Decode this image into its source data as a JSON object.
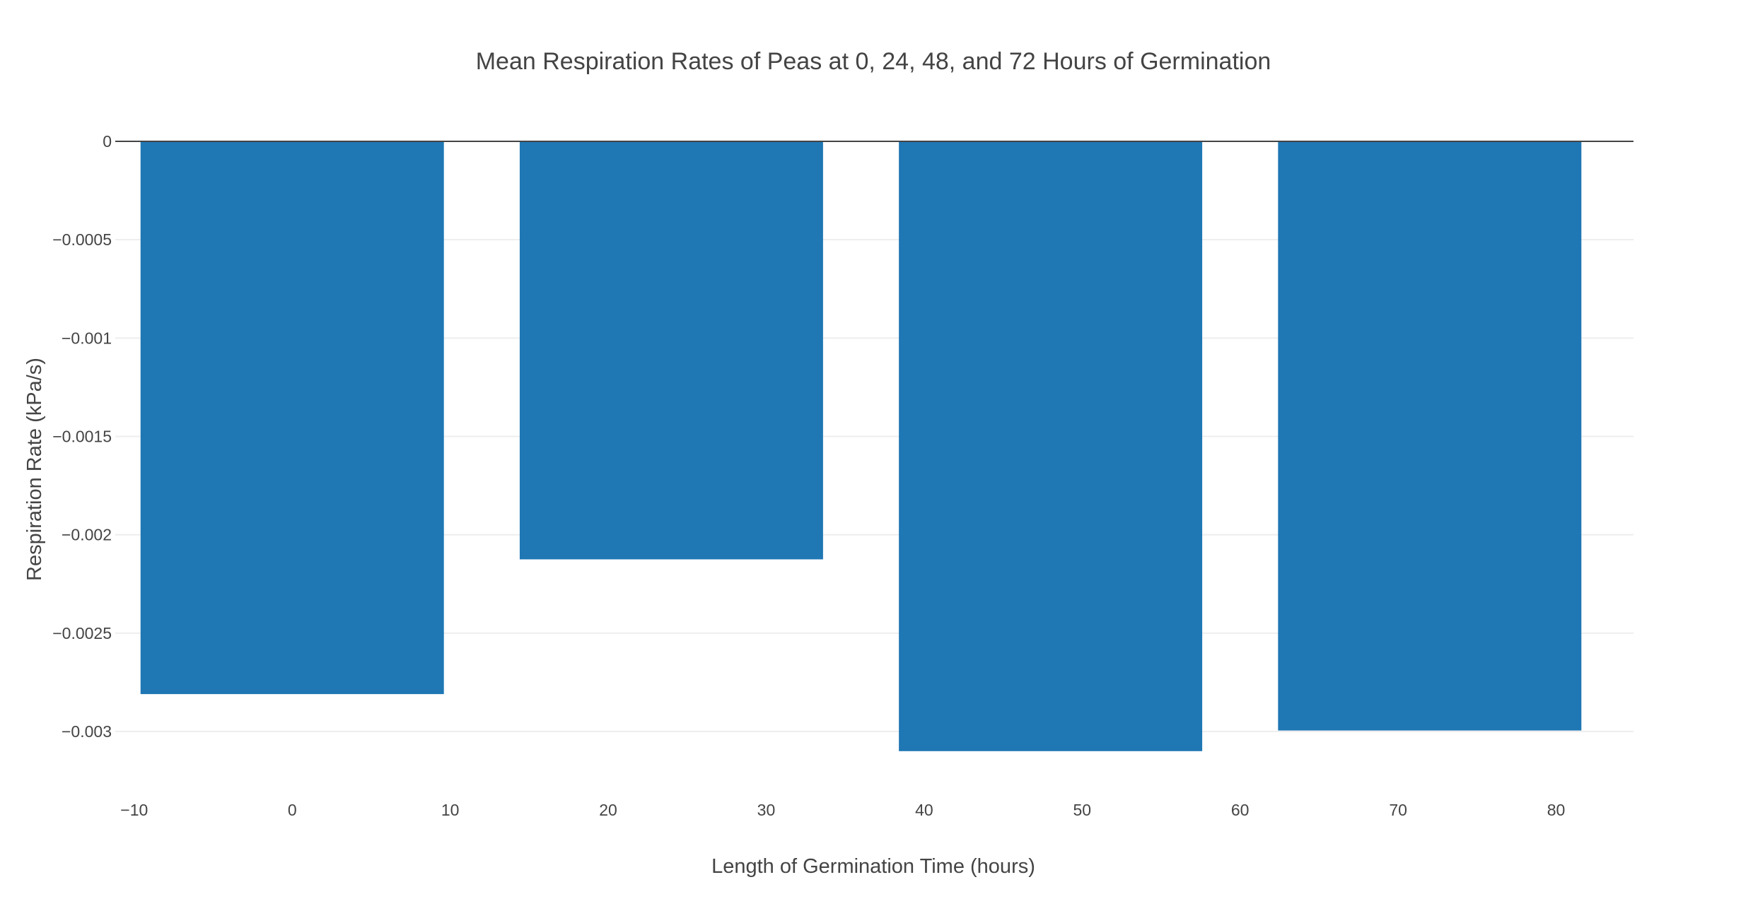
{
  "chart_data": {
    "type": "bar",
    "title": "Mean Respiration Rates of Peas at 0, 24, 48, and 72 Hours of Germination",
    "xlabel": "Length of Germination Time (hours)",
    "ylabel": "Respiration Rate (kPa/s)",
    "x": [
      0,
      24,
      48,
      72
    ],
    "values": [
      -0.00281,
      -0.002125,
      -0.0031,
      -0.002995
    ],
    "bar_width": 19.2,
    "xlim": [
      -11.2,
      84.9
    ],
    "ylim": [
      -0.00323,
      0
    ],
    "xticks": [
      -10,
      0,
      10,
      20,
      30,
      40,
      50,
      60,
      70,
      80
    ],
    "xtick_labels": [
      "−10",
      "0",
      "10",
      "20",
      "30",
      "40",
      "50",
      "60",
      "70",
      "80"
    ],
    "yticks": [
      0,
      -0.0005,
      -0.001,
      -0.0015,
      -0.002,
      -0.0025,
      -0.003
    ],
    "ytick_labels": [
      "0",
      "−0.0005",
      "−0.001",
      "−0.0015",
      "−0.002",
      "−0.0025",
      "−0.003"
    ],
    "bar_color": "#1f77b4",
    "grid": true,
    "legend": "none"
  }
}
